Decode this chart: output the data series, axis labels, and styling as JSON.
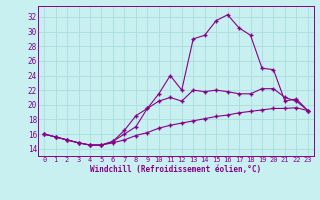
{
  "xlabel": "Windchill (Refroidissement éolien,°C)",
  "bg_color": "#c8f0f0",
  "line_color": "#880088",
  "grid_color": "#aadddd",
  "xlim": [
    -0.5,
    23.5
  ],
  "ylim": [
    13.0,
    33.5
  ],
  "xticks": [
    0,
    1,
    2,
    3,
    4,
    5,
    6,
    7,
    8,
    9,
    10,
    11,
    12,
    13,
    14,
    15,
    16,
    17,
    18,
    19,
    20,
    21,
    22,
    23
  ],
  "yticks": [
    14,
    16,
    18,
    20,
    22,
    24,
    26,
    28,
    30,
    32
  ],
  "line1_x": [
    0,
    1,
    2,
    3,
    4,
    5,
    6,
    7,
    8,
    9,
    10,
    11,
    12,
    13,
    14,
    15,
    16,
    17,
    18,
    19,
    20,
    21,
    22,
    23
  ],
  "line1_y": [
    16.0,
    15.6,
    15.2,
    14.8,
    14.5,
    14.5,
    15.0,
    16.0,
    17.0,
    19.5,
    21.5,
    24.0,
    22.0,
    29.0,
    29.5,
    31.5,
    32.3,
    30.5,
    29.5,
    25.0,
    24.8,
    20.5,
    20.8,
    19.2
  ],
  "line2_x": [
    0,
    1,
    2,
    3,
    4,
    5,
    6,
    7,
    8,
    9,
    10,
    11,
    12,
    13,
    14,
    15,
    16,
    17,
    18,
    19,
    20,
    21,
    22,
    23
  ],
  "line2_y": [
    16.0,
    15.6,
    15.2,
    14.8,
    14.5,
    14.5,
    15.0,
    16.5,
    18.5,
    19.5,
    20.5,
    21.0,
    20.5,
    22.0,
    21.8,
    22.0,
    21.8,
    21.5,
    21.5,
    22.2,
    22.2,
    21.0,
    20.5,
    19.2
  ],
  "line3_x": [
    0,
    1,
    2,
    3,
    4,
    5,
    6,
    7,
    8,
    9,
    10,
    11,
    12,
    13,
    14,
    15,
    16,
    17,
    18,
    19,
    20,
    21,
    22,
    23
  ],
  "line3_y": [
    16.0,
    15.6,
    15.2,
    14.8,
    14.5,
    14.5,
    14.8,
    15.2,
    15.8,
    16.2,
    16.8,
    17.2,
    17.5,
    17.8,
    18.1,
    18.4,
    18.6,
    18.9,
    19.1,
    19.3,
    19.5,
    19.5,
    19.6,
    19.2
  ]
}
